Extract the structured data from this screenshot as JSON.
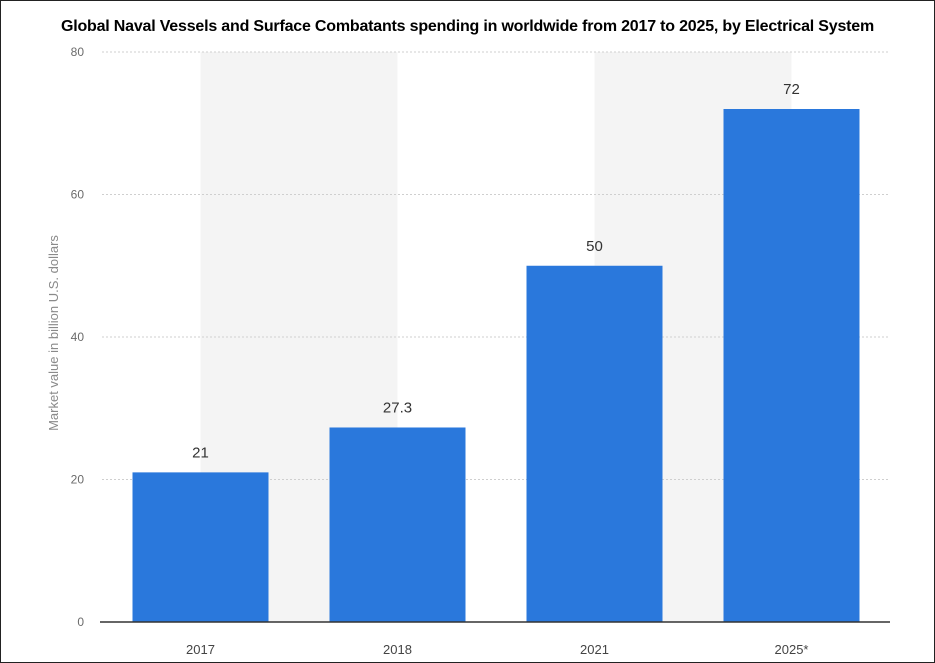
{
  "chart_data": {
    "type": "bar",
    "title": "Global Naval Vessels and Surface Combatants spending in worldwide from 2017 to 2025, by Electrical System",
    "xlabel": "",
    "ylabel": "Market value in billion U.S. dollars",
    "categories": [
      "2017",
      "2018",
      "2021",
      "2025*"
    ],
    "values": [
      21,
      27.3,
      50,
      72
    ],
    "data_labels": [
      "21",
      "27.3",
      "50",
      "72"
    ],
    "ylim": [
      0,
      80
    ],
    "yticks": [
      "0",
      "20",
      "40",
      "60",
      "80"
    ],
    "grid": true,
    "legend": "none",
    "colors": {
      "bar": "#2a78dc",
      "band": "#f4f4f4",
      "grid": "#cfcfcf",
      "axis": "#333333"
    }
  }
}
